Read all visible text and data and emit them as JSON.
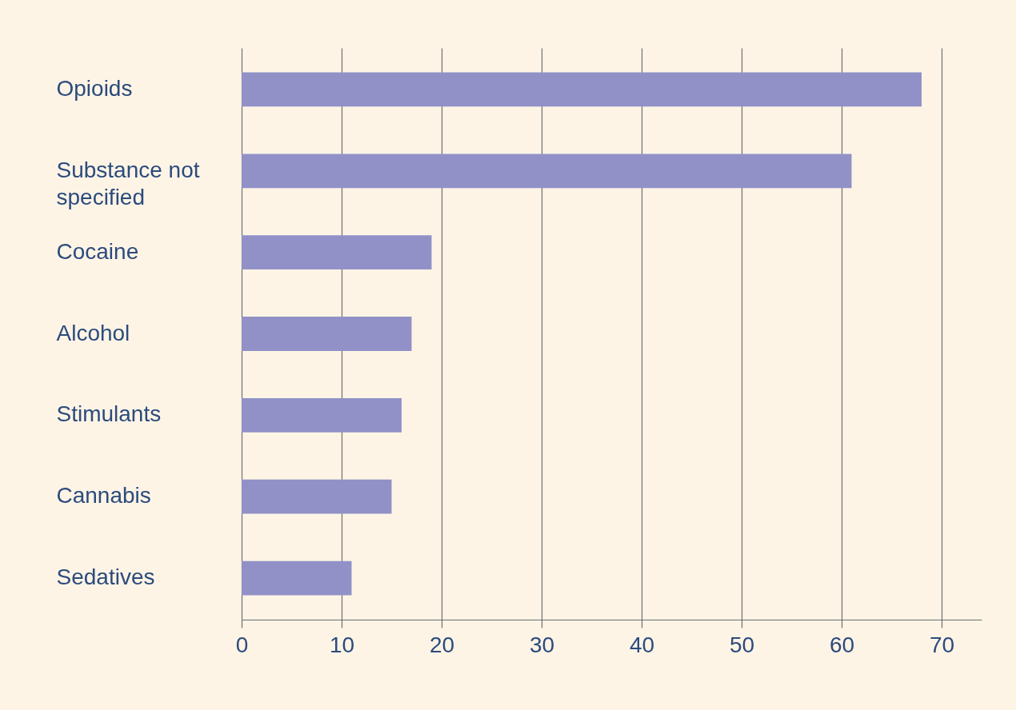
{
  "chart_data": {
    "type": "bar",
    "orientation": "horizontal",
    "categories": [
      "Opioids",
      "Substance not specified",
      "Cocaine",
      "Alcohol",
      "Stimulants",
      "Cannabis",
      "Sedatives"
    ],
    "values": [
      68,
      61,
      19,
      17,
      16,
      15,
      11
    ],
    "color": "#9191c8",
    "xlim": [
      0,
      74
    ],
    "xticks": [
      0,
      10,
      20,
      30,
      40,
      50,
      60,
      70
    ],
    "grid": "x"
  }
}
